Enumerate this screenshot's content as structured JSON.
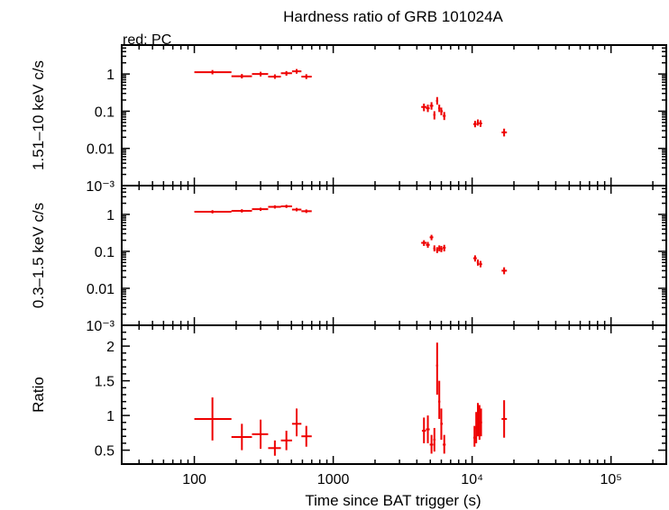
{
  "chart_data": {
    "type": "scatter",
    "title": "Hardness ratio of GRB 101024A",
    "legend_label": "red: PC",
    "xlabel": "Time since BAT trigger (s)",
    "x_scale": "log",
    "xlim": [
      30,
      250000
    ],
    "x_ticks": [
      {
        "value": 100,
        "label": "100"
      },
      {
        "value": 1000,
        "label": "1000"
      },
      {
        "value": 10000,
        "label": "10⁴"
      },
      {
        "value": 100000,
        "label": "10⁵"
      }
    ],
    "series_color": "#ee0000",
    "panels": [
      {
        "id": "hard",
        "ylabel": "1.51–10 keV c/s",
        "y_scale": "log",
        "ylim": [
          0.001,
          6
        ],
        "y_ticks": [
          {
            "value": 1,
            "label": "1"
          },
          {
            "value": 0.1,
            "label": "0.1"
          },
          {
            "value": 0.01,
            "label": "0.01"
          },
          {
            "value": 0.001,
            "label": "10⁻³"
          }
        ],
        "points": [
          {
            "x": 135,
            "xlo": 100,
            "xhi": 185,
            "y": 1.12,
            "ylo": 0.98,
            "yhi": 1.28
          },
          {
            "x": 220,
            "xlo": 185,
            "xhi": 260,
            "y": 0.87,
            "ylo": 0.76,
            "yhi": 1.0
          },
          {
            "x": 300,
            "xlo": 260,
            "xhi": 340,
            "y": 1.0,
            "ylo": 0.86,
            "yhi": 1.15
          },
          {
            "x": 380,
            "xlo": 340,
            "xhi": 420,
            "y": 0.85,
            "ylo": 0.74,
            "yhi": 0.98
          },
          {
            "x": 460,
            "xlo": 420,
            "xhi": 505,
            "y": 1.05,
            "ylo": 0.9,
            "yhi": 1.2
          },
          {
            "x": 545,
            "xlo": 505,
            "xhi": 590,
            "y": 1.18,
            "ylo": 1.02,
            "yhi": 1.36
          },
          {
            "x": 640,
            "xlo": 590,
            "xhi": 700,
            "y": 0.85,
            "ylo": 0.73,
            "yhi": 0.99
          },
          {
            "x": 4500,
            "xlo": 4300,
            "xhi": 4700,
            "y": 0.13,
            "ylo": 0.1,
            "yhi": 0.16
          },
          {
            "x": 4800,
            "xlo": 4650,
            "xhi": 4950,
            "y": 0.12,
            "ylo": 0.095,
            "yhi": 0.15
          },
          {
            "x": 5100,
            "xlo": 4950,
            "xhi": 5250,
            "y": 0.14,
            "ylo": 0.11,
            "yhi": 0.175
          },
          {
            "x": 5350,
            "xlo": 5250,
            "xhi": 5450,
            "y": 0.08,
            "ylo": 0.06,
            "yhi": 0.1
          },
          {
            "x": 5600,
            "xlo": 5500,
            "xhi": 5700,
            "y": 0.19,
            "ylo": 0.15,
            "yhi": 0.24
          },
          {
            "x": 5800,
            "xlo": 5700,
            "xhi": 5900,
            "y": 0.12,
            "ylo": 0.095,
            "yhi": 0.15
          },
          {
            "x": 6000,
            "xlo": 5900,
            "xhi": 6150,
            "y": 0.1,
            "ylo": 0.078,
            "yhi": 0.125
          },
          {
            "x": 6300,
            "xlo": 6150,
            "xhi": 6450,
            "y": 0.075,
            "ylo": 0.058,
            "yhi": 0.095
          },
          {
            "x": 10500,
            "xlo": 10200,
            "xhi": 10800,
            "y": 0.045,
            "ylo": 0.037,
            "yhi": 0.055
          },
          {
            "x": 11000,
            "xlo": 10800,
            "xhi": 11200,
            "y": 0.05,
            "ylo": 0.041,
            "yhi": 0.06
          },
          {
            "x": 11500,
            "xlo": 11200,
            "xhi": 11800,
            "y": 0.047,
            "ylo": 0.038,
            "yhi": 0.057
          },
          {
            "x": 17000,
            "xlo": 16300,
            "xhi": 17800,
            "y": 0.027,
            "ylo": 0.021,
            "yhi": 0.034
          }
        ]
      },
      {
        "id": "soft",
        "ylabel": "0.3–1.5 keV c/s",
        "y_scale": "log",
        "ylim": [
          0.001,
          6
        ],
        "y_ticks": [
          {
            "value": 1,
            "label": "1"
          },
          {
            "value": 0.1,
            "label": "0.1"
          },
          {
            "value": 0.01,
            "label": "0.01"
          },
          {
            "value": 0.001,
            "label": "10⁻³"
          }
        ],
        "points": [
          {
            "x": 135,
            "xlo": 100,
            "xhi": 185,
            "y": 1.18,
            "ylo": 1.06,
            "yhi": 1.3
          },
          {
            "x": 220,
            "xlo": 185,
            "xhi": 260,
            "y": 1.25,
            "ylo": 1.12,
            "yhi": 1.38
          },
          {
            "x": 300,
            "xlo": 260,
            "xhi": 340,
            "y": 1.38,
            "ylo": 1.24,
            "yhi": 1.52
          },
          {
            "x": 380,
            "xlo": 340,
            "xhi": 420,
            "y": 1.6,
            "ylo": 1.44,
            "yhi": 1.76
          },
          {
            "x": 460,
            "xlo": 420,
            "xhi": 505,
            "y": 1.65,
            "ylo": 1.49,
            "yhi": 1.82
          },
          {
            "x": 545,
            "xlo": 505,
            "xhi": 590,
            "y": 1.35,
            "ylo": 1.21,
            "yhi": 1.5
          },
          {
            "x": 640,
            "xlo": 590,
            "xhi": 700,
            "y": 1.22,
            "ylo": 1.09,
            "yhi": 1.36
          },
          {
            "x": 4500,
            "xlo": 4300,
            "xhi": 4700,
            "y": 0.17,
            "ylo": 0.14,
            "yhi": 0.2
          },
          {
            "x": 4800,
            "xlo": 4650,
            "xhi": 4950,
            "y": 0.15,
            "ylo": 0.125,
            "yhi": 0.18
          },
          {
            "x": 5100,
            "xlo": 4950,
            "xhi": 5250,
            "y": 0.24,
            "ylo": 0.2,
            "yhi": 0.28
          },
          {
            "x": 5350,
            "xlo": 5250,
            "xhi": 5450,
            "y": 0.12,
            "ylo": 0.1,
            "yhi": 0.145
          },
          {
            "x": 5600,
            "xlo": 5500,
            "xhi": 5700,
            "y": 0.11,
            "ylo": 0.09,
            "yhi": 0.13
          },
          {
            "x": 5800,
            "xlo": 5700,
            "xhi": 5900,
            "y": 0.12,
            "ylo": 0.1,
            "yhi": 0.145
          },
          {
            "x": 6000,
            "xlo": 5900,
            "xhi": 6150,
            "y": 0.115,
            "ylo": 0.095,
            "yhi": 0.14
          },
          {
            "x": 6300,
            "xlo": 6150,
            "xhi": 6450,
            "y": 0.125,
            "ylo": 0.1,
            "yhi": 0.15
          },
          {
            "x": 10500,
            "xlo": 10200,
            "xhi": 10800,
            "y": 0.065,
            "ylo": 0.053,
            "yhi": 0.078
          },
          {
            "x": 11000,
            "xlo": 10800,
            "xhi": 11200,
            "y": 0.05,
            "ylo": 0.041,
            "yhi": 0.06
          },
          {
            "x": 11500,
            "xlo": 11200,
            "xhi": 11800,
            "y": 0.045,
            "ylo": 0.037,
            "yhi": 0.055
          },
          {
            "x": 17000,
            "xlo": 16300,
            "xhi": 17800,
            "y": 0.03,
            "ylo": 0.024,
            "yhi": 0.037
          }
        ]
      },
      {
        "id": "ratio",
        "ylabel": "Ratio",
        "y_scale": "linear",
        "ylim": [
          0.3,
          2.3
        ],
        "y_ticks": [
          {
            "value": 0.5,
            "label": "0.5"
          },
          {
            "value": 1,
            "label": "1"
          },
          {
            "value": 1.5,
            "label": "1.5"
          },
          {
            "value": 2,
            "label": "2"
          }
        ],
        "points": [
          {
            "x": 135,
            "xlo": 100,
            "xhi": 185,
            "y": 0.95,
            "ylo": 0.64,
            "yhi": 1.26
          },
          {
            "x": 220,
            "xlo": 185,
            "xhi": 260,
            "y": 0.69,
            "ylo": 0.5,
            "yhi": 0.88
          },
          {
            "x": 300,
            "xlo": 260,
            "xhi": 340,
            "y": 0.73,
            "ylo": 0.52,
            "yhi": 0.94
          },
          {
            "x": 380,
            "xlo": 340,
            "xhi": 420,
            "y": 0.53,
            "ylo": 0.42,
            "yhi": 0.64
          },
          {
            "x": 460,
            "xlo": 420,
            "xhi": 505,
            "y": 0.64,
            "ylo": 0.5,
            "yhi": 0.78
          },
          {
            "x": 545,
            "xlo": 505,
            "xhi": 590,
            "y": 0.88,
            "ylo": 0.7,
            "yhi": 1.1
          },
          {
            "x": 640,
            "xlo": 590,
            "xhi": 700,
            "y": 0.7,
            "ylo": 0.55,
            "yhi": 0.85
          },
          {
            "x": 4500,
            "xlo": 4350,
            "xhi": 4650,
            "y": 0.78,
            "ylo": 0.6,
            "yhi": 0.97
          },
          {
            "x": 4800,
            "xlo": 4650,
            "xhi": 4950,
            "y": 0.8,
            "ylo": 0.6,
            "yhi": 1.0
          },
          {
            "x": 5100,
            "xlo": 4950,
            "xhi": 5250,
            "y": 0.58,
            "ylo": 0.45,
            "yhi": 0.72
          },
          {
            "x": 5350,
            "xlo": 5250,
            "xhi": 5450,
            "y": 0.65,
            "ylo": 0.48,
            "yhi": 0.82
          },
          {
            "x": 5600,
            "xlo": 5500,
            "xhi": 5700,
            "y": 1.72,
            "ylo": 1.3,
            "yhi": 2.05
          },
          {
            "x": 5800,
            "xlo": 5700,
            "xhi": 5900,
            "y": 1.2,
            "ylo": 0.95,
            "yhi": 1.5
          },
          {
            "x": 6000,
            "xlo": 5900,
            "xhi": 6150,
            "y": 0.88,
            "ylo": 0.65,
            "yhi": 1.1
          },
          {
            "x": 6300,
            "xlo": 6150,
            "xhi": 6450,
            "y": 0.58,
            "ylo": 0.45,
            "yhi": 0.72
          },
          {
            "x": 10400,
            "xlo": 10200,
            "xhi": 10600,
            "y": 0.68,
            "ylo": 0.55,
            "yhi": 0.85
          },
          {
            "x": 10700,
            "xlo": 10550,
            "xhi": 10850,
            "y": 0.82,
            "ylo": 0.6,
            "yhi": 1.05
          },
          {
            "x": 11000,
            "xlo": 10850,
            "xhi": 11150,
            "y": 0.95,
            "ylo": 0.7,
            "yhi": 1.18
          },
          {
            "x": 11300,
            "xlo": 11150,
            "xhi": 11450,
            "y": 0.9,
            "ylo": 0.65,
            "yhi": 1.15
          },
          {
            "x": 11600,
            "xlo": 11450,
            "xhi": 11800,
            "y": 0.9,
            "ylo": 0.7,
            "yhi": 1.1
          },
          {
            "x": 17000,
            "xlo": 16300,
            "xhi": 17800,
            "y": 0.95,
            "ylo": 0.68,
            "yhi": 1.22
          }
        ]
      }
    ]
  }
}
